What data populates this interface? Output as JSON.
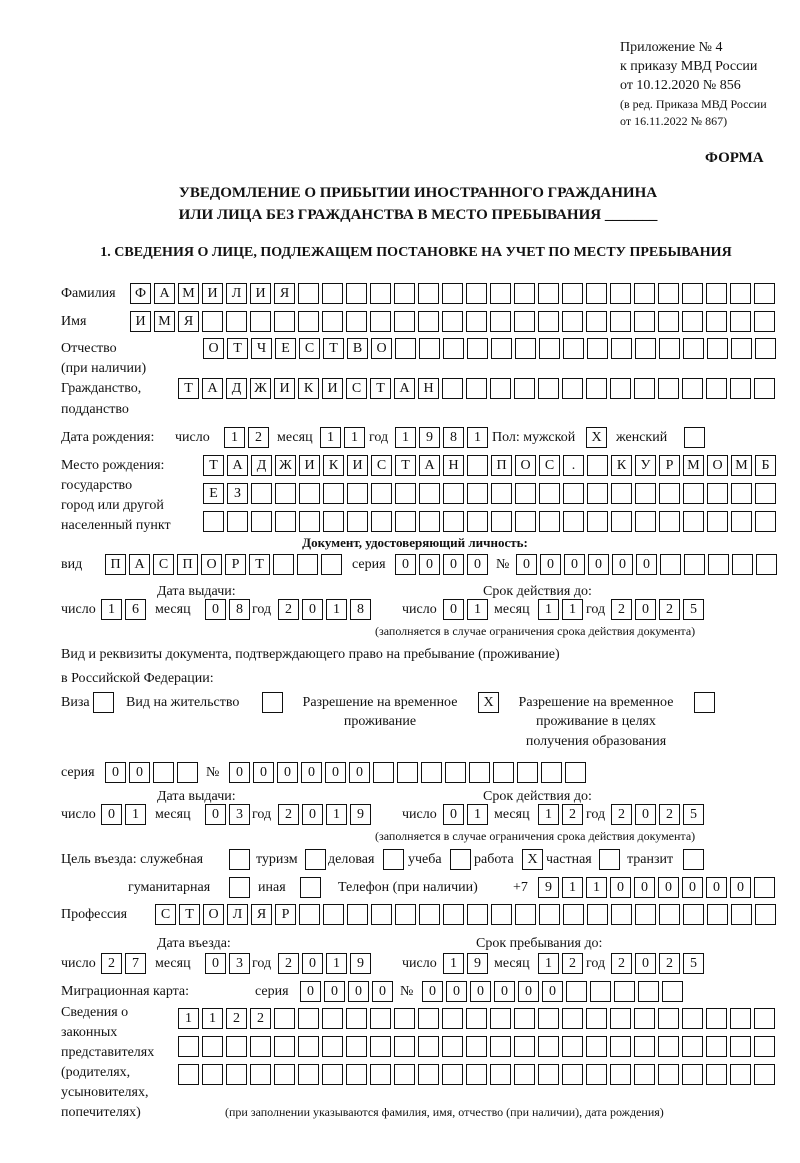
{
  "header": {
    "line1": "Приложение № 4",
    "line2": "к приказу МВД России",
    "line3": "от 10.12.2020 № 856",
    "line4": "(в ред. Приказа МВД России",
    "line5": "от 16.11.2022 № 867)",
    "form": "ФОРМА",
    "title1": "УВЕДОМЛЕНИЕ О ПРИБЫТИИ ИНОСТРАННОГО ГРАЖДАНИНА",
    "title2": "ИЛИ ЛИЦА БЕЗ ГРАЖДАНСТВА В МЕСТО ПРЕБЫВАНИЯ _______",
    "section1": "1. СВЕДЕНИЯ О ЛИЦЕ, ПОДЛЕЖАЩЕМ ПОСТАНОВКЕ НА УЧЕТ ПО МЕСТУ ПРЕБЫВАНИЯ"
  },
  "labels": {
    "surname": "Фамилия",
    "name": "Имя",
    "patronymic": "Отчество",
    "patronymic2": "(при наличии)",
    "citizenship": "Гражданство,",
    "citizenship2": "подданство",
    "dob": "Дата рождения:",
    "day": "число",
    "month": "месяц",
    "year": "год",
    "sex": "Пол: мужской",
    "female": "женский",
    "birthplace": "Место рождения:",
    "birthplace2": "государство",
    "birthplace3": "город или другой",
    "birthplace4": "населенный пункт",
    "id_doc": "Документ, удостоверяющий личность:",
    "kind": "вид",
    "series": "серия",
    "number": "№",
    "issue_date": "Дата выдачи:",
    "valid_until": "Срок действия до:",
    "valid_note": "(заполняется в случае ограничения срока действия документа)",
    "right_doc1": "Вид и реквизиты документа, подтверждающего право на пребывание (проживание)",
    "right_doc2": "в Российской Федерации:",
    "visa": "Виза",
    "residence": "Вид на жительство",
    "temp1": "Разрешение на временное",
    "temp2": "проживание",
    "edu1": "Разрешение на временное",
    "edu2": "проживание в целях",
    "edu3": "получения образования",
    "purpose": "Цель въезда: служебная",
    "tourism": "туризм",
    "business": "деловая",
    "study": "учеба",
    "work": "работа",
    "private": "частная",
    "transit": "транзит",
    "humanitarian": "гуманитарная",
    "other": "иная",
    "phone": "Телефон (при наличии)",
    "phone_prefix": "+7",
    "profession": "Профессия",
    "entry_date": "Дата въезда:",
    "stay_until": "Срок пребывания до:",
    "migration_card": "Миграционная карта:",
    "reps1": "Сведения о",
    "reps2": "законных",
    "reps3": "представителях",
    "reps4": "(родителях,",
    "reps5": "усыновителях,",
    "reps6": "попечителях)",
    "reps_note": "(при заполнении указываются фамилия, имя, отчество (при наличии), дата рождения)"
  },
  "values": {
    "surname": "ФАМИЛИЯ",
    "name": "ИМЯ",
    "patronymic": "ОТЧЕСТВО",
    "citizenship": "ТАДЖИКИСТАН",
    "dob_day": "12",
    "dob_month": "11",
    "dob_year": "1981",
    "male": "X",
    "female": "",
    "birthplace1": "ТАДЖИКИСТАН ПОС. КУРМОМБ",
    "birthplace2": "ЕЗ",
    "birthplace3": "",
    "doc_kind": "ПАСПОРТ",
    "doc_series": "0000",
    "doc_number": "000000",
    "doc_issue_day": "16",
    "doc_issue_month": "08",
    "doc_issue_year": "2018",
    "doc_valid_day": "01",
    "doc_valid_month": "11",
    "doc_valid_year": "2025",
    "visa": "",
    "residence": "",
    "temp_residence": "X",
    "edu_residence": "",
    "rd_series": "00",
    "rd_number": "000000",
    "rd_issue_day": "01",
    "rd_issue_month": "03",
    "rd_issue_year": "2019",
    "rd_valid_day": "01",
    "rd_valid_month": "12",
    "rd_valid_year": "2025",
    "p_service": "",
    "p_tourism": "",
    "p_business": "",
    "p_study": "",
    "p_work": "X",
    "p_private": "",
    "p_transit": "",
    "p_humanitarian": "",
    "p_other": "",
    "phone": "911000000",
    "profession": "СТОЛЯР",
    "entry_day": "27",
    "entry_month": "03",
    "entry_year": "2019",
    "stay_day": "19",
    "stay_month": "12",
    "stay_year": "2025",
    "mc_series": "0000",
    "mc_number": "000000",
    "reps1": "1122",
    "reps2": "",
    "reps3": ""
  }
}
